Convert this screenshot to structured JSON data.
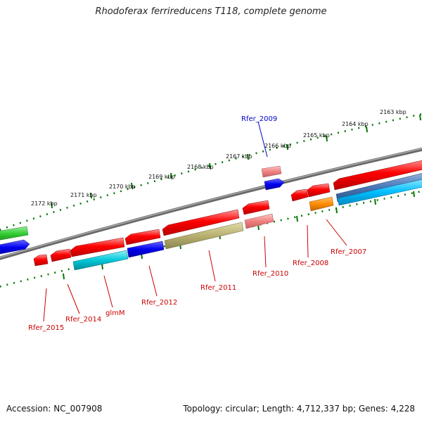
{
  "title": "Rhodoferax ferrireducens T118, complete genome",
  "accession": "Accession: NC_007908",
  "topology": "Topology: circular; Length: 4,712,337 bp; Genes: 4,228",
  "ruler": {
    "unit": "kbp",
    "labels": [
      "2163 kbp",
      "2164 kbp",
      "2165 kbp",
      "2166 kbp",
      "2167 kbp",
      "2168 kbp",
      "2169 kbp",
      "2170 kbp",
      "2171 kbp",
      "2172 kbp"
    ]
  },
  "genes": [
    {
      "name": "Rfer_2009",
      "color": "#0000cc"
    },
    {
      "name": "Rfer_2007",
      "color": "#cc0000"
    },
    {
      "name": "Rfer_2008",
      "color": "#cc0000"
    },
    {
      "name": "Rfer_2010",
      "color": "#cc0000"
    },
    {
      "name": "Rfer_2011",
      "color": "#cc0000"
    },
    {
      "name": "Rfer_2012",
      "color": "#cc0000"
    },
    {
      "name": "glmM",
      "color": "#cc0000"
    },
    {
      "name": "Rfer_2014",
      "color": "#cc0000"
    },
    {
      "name": "Rfer_2015",
      "color": "#cc0000"
    }
  ],
  "colors": {
    "red": "#ff0000",
    "pink": "#f08080",
    "blue": "#0000ee",
    "cyan": "#00c8d8",
    "olive": "#b8b070",
    "orange": "#ff8c00",
    "green": "#33cc33",
    "steel": "#4a78b8",
    "sky": "#00bfff",
    "backbone": "#808080",
    "ruler": "#007700"
  }
}
